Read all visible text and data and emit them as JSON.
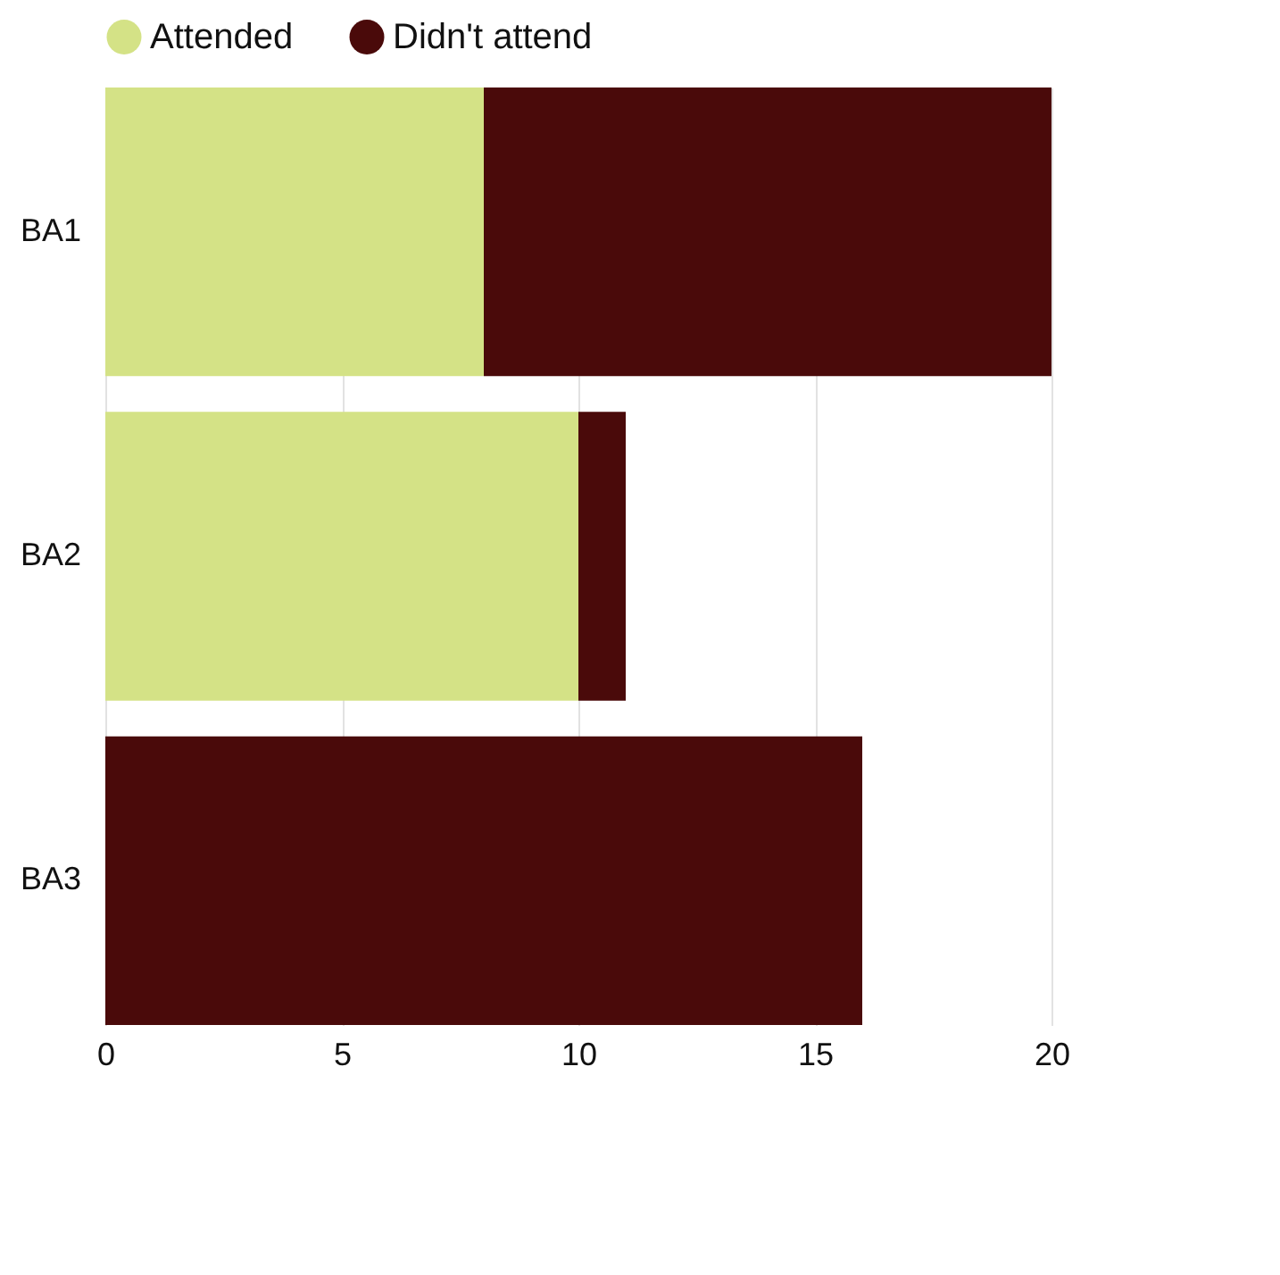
{
  "chart_data": {
    "type": "bar",
    "orientation": "horizontal",
    "stacked": true,
    "categories": [
      "BA1",
      "BA2",
      "BA3"
    ],
    "series": [
      {
        "name": "Attended",
        "color": "#d4e286",
        "values": [
          8,
          10,
          0
        ]
      },
      {
        "name": "Didn't attend",
        "color": "#4a0a0a",
        "values": [
          12,
          1,
          16
        ]
      }
    ],
    "xlim": [
      0,
      20
    ],
    "xticks": [
      0,
      5,
      10,
      15,
      20
    ],
    "grid": "x",
    "legend": "top"
  }
}
